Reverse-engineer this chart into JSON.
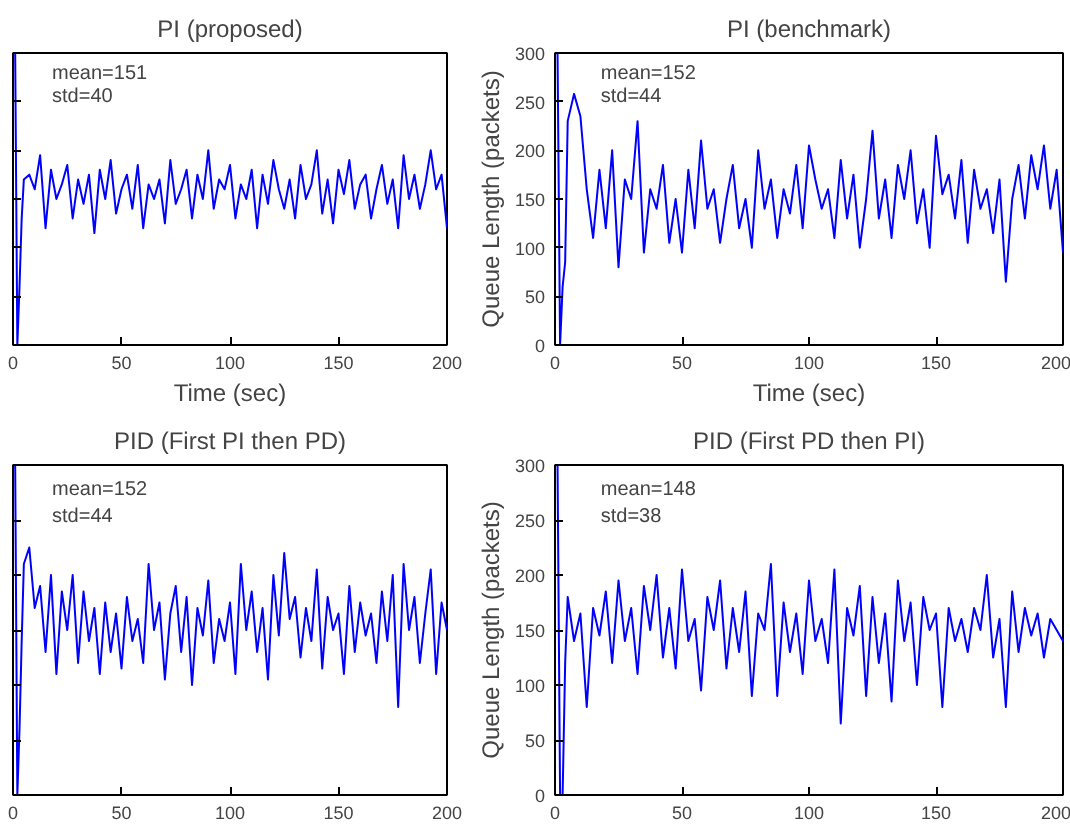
{
  "chart_data": [
    {
      "type": "line",
      "title": "PI (proposed)",
      "xlabel": "Time (sec)",
      "annotations": [
        "mean=151",
        "std=40"
      ],
      "xlim": [
        0,
        200
      ],
      "xticks": [
        0,
        50,
        100,
        150,
        200
      ],
      "ylim": [
        0,
        300
      ],
      "yticks": [
        0,
        50,
        100,
        150,
        200,
        250,
        300
      ],
      "tick_labels": "x",
      "grid": false,
      "x": [
        0,
        1,
        2,
        3,
        4,
        5,
        7.5,
        10,
        12.5,
        15,
        17.5,
        20,
        22.5,
        25,
        27.5,
        30,
        32.5,
        35,
        37.5,
        40,
        42.5,
        45,
        47.5,
        50,
        52.5,
        55,
        57.5,
        60,
        62.5,
        65,
        67.5,
        70,
        72.5,
        75,
        77.5,
        80,
        82.5,
        85,
        87.5,
        90,
        92.5,
        95,
        97.5,
        100,
        102.5,
        105,
        107.5,
        110,
        112.5,
        115,
        117.5,
        120,
        122.5,
        125,
        127.5,
        130,
        132.5,
        135,
        137.5,
        140,
        142.5,
        145,
        147.5,
        150,
        152.5,
        155,
        157.5,
        160,
        162.5,
        165,
        167.5,
        170,
        172.5,
        175,
        177.5,
        180,
        182.5,
        185,
        187.5,
        190,
        192.5,
        195,
        197.5,
        200
      ],
      "series": [
        {
          "color": "#0000ff",
          "values": [
            300,
            300,
            0,
            60,
            130,
            170,
            175,
            160,
            195,
            120,
            180,
            150,
            165,
            185,
            130,
            170,
            145,
            175,
            115,
            180,
            150,
            190,
            135,
            160,
            175,
            140,
            185,
            120,
            165,
            150,
            170,
            125,
            190,
            145,
            160,
            180,
            130,
            175,
            150,
            200,
            140,
            170,
            160,
            185,
            130,
            165,
            150,
            180,
            120,
            175,
            145,
            190,
            160,
            140,
            170,
            130,
            185,
            150,
            165,
            200,
            135,
            170,
            125,
            180,
            155,
            190,
            140,
            165,
            175,
            130,
            160,
            185,
            145,
            170,
            120,
            195,
            150,
            175,
            140,
            165,
            200,
            160,
            175,
            120
          ]
        }
      ]
    },
    {
      "type": "line",
      "title": "PI (benchmark)",
      "xlabel": "Time (sec)",
      "ylabel": "Queue Length (packets)",
      "annotations": [
        "mean=152",
        "std=44"
      ],
      "xlim": [
        0,
        200
      ],
      "xticks": [
        0,
        50,
        100,
        150,
        200
      ],
      "ylim": [
        0,
        300
      ],
      "yticks": [
        0,
        50,
        100,
        150,
        200,
        250,
        300
      ],
      "grid": false,
      "x": [
        0,
        1,
        2,
        3,
        4,
        5,
        7.5,
        10,
        12.5,
        15,
        17.5,
        20,
        22.5,
        25,
        27.5,
        30,
        32.5,
        35,
        37.5,
        40,
        42.5,
        45,
        47.5,
        50,
        52.5,
        55,
        57.5,
        60,
        62.5,
        65,
        67.5,
        70,
        72.5,
        75,
        77.5,
        80,
        82.5,
        85,
        87.5,
        90,
        92.5,
        95,
        97.5,
        100,
        102.5,
        105,
        107.5,
        110,
        112.5,
        115,
        117.5,
        120,
        122.5,
        125,
        127.5,
        130,
        132.5,
        135,
        137.5,
        140,
        142.5,
        145,
        147.5,
        150,
        152.5,
        155,
        157.5,
        160,
        162.5,
        165,
        167.5,
        170,
        172.5,
        175,
        177.5,
        180,
        182.5,
        185,
        187.5,
        190,
        192.5,
        195,
        197.5,
        200
      ],
      "series": [
        {
          "color": "#0000ff",
          "values": [
            300,
            300,
            0,
            60,
            85,
            230,
            258,
            235,
            160,
            110,
            180,
            120,
            200,
            80,
            170,
            150,
            230,
            95,
            160,
            140,
            185,
            105,
            150,
            95,
            180,
            120,
            210,
            140,
            160,
            105,
            150,
            185,
            120,
            150,
            100,
            200,
            140,
            170,
            110,
            160,
            135,
            185,
            120,
            205,
            170,
            140,
            160,
            110,
            190,
            130,
            175,
            100,
            150,
            220,
            130,
            170,
            110,
            185,
            150,
            200,
            125,
            160,
            100,
            215,
            155,
            175,
            130,
            190,
            105,
            180,
            140,
            160,
            115,
            170,
            65,
            150,
            185,
            130,
            195,
            160,
            205,
            140,
            180,
            95
          ]
        }
      ]
    },
    {
      "type": "line",
      "title": "PID (First PI then PD)",
      "annotations": [
        "mean=152",
        "std=44"
      ],
      "xlim": [
        0,
        200
      ],
      "xticks": [
        0,
        50,
        100,
        150,
        200
      ],
      "ylim": [
        0,
        300
      ],
      "yticks": [
        0,
        50,
        100,
        150,
        200,
        250,
        300
      ],
      "tick_labels": "x",
      "grid": false,
      "x": [
        0,
        1,
        2,
        3,
        4,
        5,
        7.5,
        10,
        12.5,
        15,
        17.5,
        20,
        22.5,
        25,
        27.5,
        30,
        32.5,
        35,
        37.5,
        40,
        42.5,
        45,
        47.5,
        50,
        52.5,
        55,
        57.5,
        60,
        62.5,
        65,
        67.5,
        70,
        72.5,
        75,
        77.5,
        80,
        82.5,
        85,
        87.5,
        90,
        92.5,
        95,
        97.5,
        100,
        102.5,
        105,
        107.5,
        110,
        112.5,
        115,
        117.5,
        120,
        122.5,
        125,
        127.5,
        130,
        132.5,
        135,
        137.5,
        140,
        142.5,
        145,
        147.5,
        150,
        152.5,
        155,
        157.5,
        160,
        162.5,
        165,
        167.5,
        170,
        172.5,
        175,
        177.5,
        180,
        182.5,
        185,
        187.5,
        190,
        192.5,
        195,
        197.5,
        200
      ],
      "series": [
        {
          "color": "#0000ff",
          "values": [
            300,
            300,
            0,
            60,
            140,
            210,
            225,
            170,
            190,
            130,
            200,
            110,
            185,
            150,
            200,
            120,
            185,
            140,
            170,
            110,
            175,
            130,
            165,
            115,
            180,
            140,
            160,
            120,
            210,
            150,
            175,
            105,
            165,
            190,
            130,
            180,
            100,
            170,
            145,
            195,
            120,
            160,
            140,
            175,
            110,
            210,
            150,
            185,
            130,
            170,
            105,
            200,
            145,
            220,
            160,
            180,
            125,
            170,
            140,
            205,
            115,
            180,
            150,
            165,
            110,
            190,
            130,
            175,
            145,
            165,
            120,
            185,
            140,
            200,
            80,
            210,
            150,
            180,
            120,
            165,
            205,
            110,
            175,
            150
          ]
        }
      ]
    },
    {
      "type": "line",
      "title": "PID (First PD then PI)",
      "ylabel": "Queue Length (packets)",
      "annotations": [
        "mean=148",
        "std=38"
      ],
      "xlim": [
        0,
        200
      ],
      "xticks": [
        0,
        50,
        100,
        150,
        200
      ],
      "ylim": [
        0,
        300
      ],
      "yticks": [
        0,
        50,
        100,
        150,
        200,
        250,
        300
      ],
      "grid": false,
      "x": [
        0,
        1,
        2,
        3,
        4,
        5,
        7.5,
        10,
        12.5,
        15,
        17.5,
        20,
        22.5,
        25,
        27.5,
        30,
        32.5,
        35,
        37.5,
        40,
        42.5,
        45,
        47.5,
        50,
        52.5,
        55,
        57.5,
        60,
        62.5,
        65,
        67.5,
        70,
        72.5,
        75,
        77.5,
        80,
        82.5,
        85,
        87.5,
        90,
        92.5,
        95,
        97.5,
        100,
        102.5,
        105,
        107.5,
        110,
        112.5,
        115,
        117.5,
        120,
        122.5,
        125,
        127.5,
        130,
        132.5,
        135,
        137.5,
        140,
        142.5,
        145,
        147.5,
        150,
        152.5,
        155,
        157.5,
        160,
        162.5,
        165,
        167.5,
        170,
        172.5,
        175,
        177.5,
        180,
        182.5,
        185,
        187.5,
        190,
        192.5,
        195,
        197.5,
        200
      ],
      "series": [
        {
          "color": "#0000ff",
          "values": [
            300,
            300,
            0,
            0,
            120,
            180,
            140,
            165,
            80,
            170,
            145,
            185,
            120,
            195,
            140,
            170,
            110,
            190,
            150,
            200,
            125,
            170,
            115,
            205,
            140,
            160,
            95,
            180,
            150,
            195,
            115,
            170,
            130,
            185,
            90,
            165,
            150,
            210,
            90,
            175,
            130,
            165,
            110,
            195,
            140,
            160,
            120,
            205,
            65,
            170,
            145,
            190,
            90,
            180,
            120,
            165,
            85,
            195,
            140,
            175,
            100,
            180,
            150,
            165,
            80,
            170,
            140,
            160,
            130,
            170,
            150,
            200,
            125,
            160,
            80,
            185,
            130,
            170,
            145,
            165,
            125,
            160,
            150,
            140
          ]
        }
      ]
    }
  ]
}
